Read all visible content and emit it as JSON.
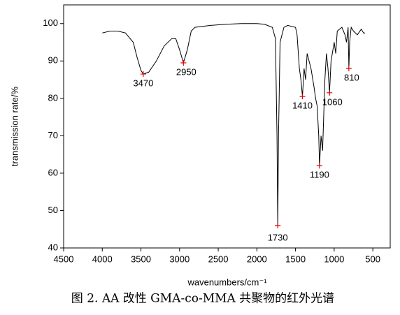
{
  "chart_data": {
    "type": "line",
    "xlabel": "wavenumbers/cm⁻¹",
    "ylabel": "transmission rate/%",
    "caption": "图 2. AA 改性 GMA-co-MMA 共聚物的红外光谱",
    "xlim": [
      4500,
      275
    ],
    "xticks": [
      4500,
      4000,
      3500,
      3000,
      2500,
      2000,
      1500,
      1000,
      500
    ],
    "ylim": [
      40,
      105
    ],
    "yticks": [
      40,
      50,
      60,
      70,
      80,
      90,
      100
    ],
    "color": "#000000",
    "peak_color": "#e00000",
    "x": [
      4000,
      3900,
      3800,
      3700,
      3600,
      3550,
      3500,
      3470,
      3400,
      3300,
      3200,
      3100,
      3050,
      3000,
      2950,
      2900,
      2850,
      2800,
      2600,
      2400,
      2200,
      2000,
      1900,
      1800,
      1760,
      1740,
      1730,
      1720,
      1700,
      1650,
      1600,
      1500,
      1480,
      1450,
      1430,
      1410,
      1390,
      1370,
      1350,
      1300,
      1260,
      1240,
      1220,
      1200,
      1190,
      1170,
      1150,
      1120,
      1100,
      1080,
      1060,
      1040,
      1000,
      980,
      960,
      900,
      860,
      840,
      820,
      810,
      800,
      780,
      750,
      700,
      650,
      620,
      600
    ],
    "values": [
      97.5,
      98,
      98,
      97.5,
      95,
      91,
      87.5,
      86.5,
      87,
      90,
      94,
      96,
      96,
      93,
      89.5,
      93,
      98,
      99,
      99.5,
      99.8,
      100,
      100,
      99.8,
      99,
      96,
      70,
      46,
      70,
      95,
      99,
      99.5,
      99,
      97,
      88,
      85,
      80.5,
      88,
      85,
      92,
      88,
      83,
      80,
      78,
      70,
      62,
      70,
      66,
      85,
      92,
      88,
      81.5,
      90,
      95,
      92,
      98,
      99,
      97,
      95,
      99,
      88,
      95,
      99,
      98,
      97,
      98.5,
      97.5,
      97.5
    ],
    "peaks": {
      "x": [
        3470,
        2950,
        1730,
        1410,
        1190,
        1060,
        810
      ],
      "y": [
        86.5,
        89.5,
        46,
        80.5,
        62,
        81.5,
        88
      ]
    }
  }
}
